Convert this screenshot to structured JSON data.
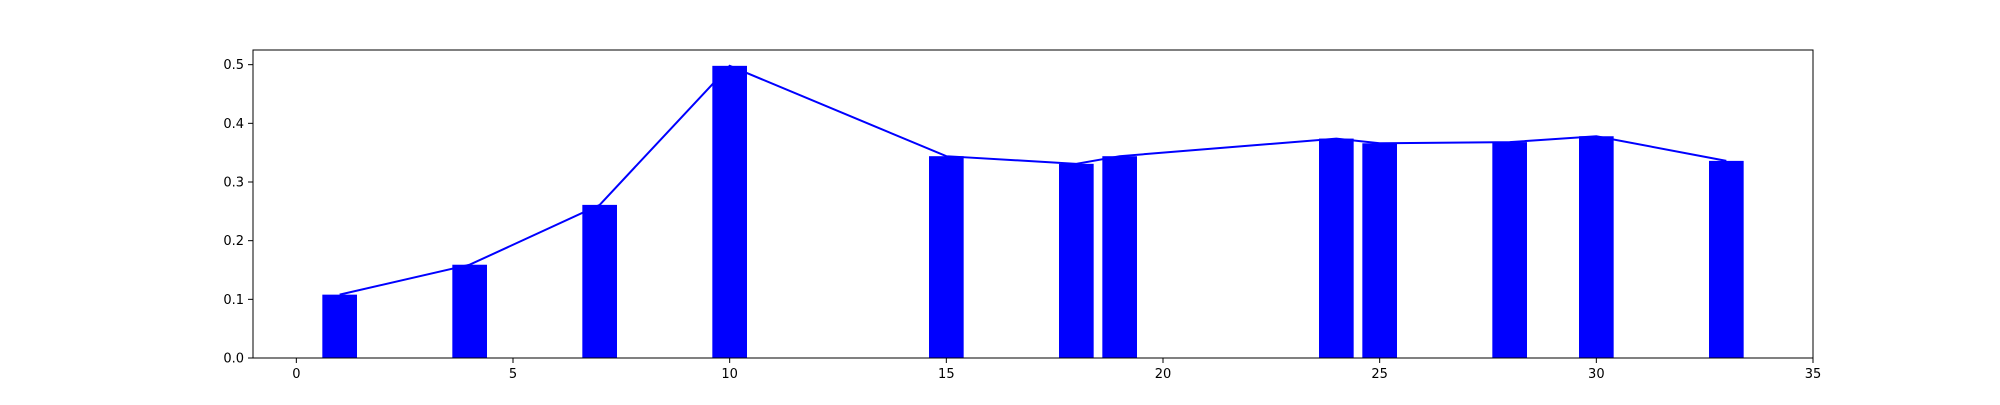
{
  "chart_data": {
    "type": "bar",
    "title": "",
    "xlabel": "",
    "ylabel": "",
    "xlim": [
      -1,
      35
    ],
    "ylim": [
      0,
      0.525
    ],
    "grid": false,
    "bar_color": "#0000ff",
    "line_color": "#0000ff",
    "x_ticks": [
      0,
      5,
      10,
      15,
      20,
      25,
      30,
      35
    ],
    "x_tick_labels": [
      "0",
      "5",
      "10",
      "15",
      "20",
      "25",
      "30",
      "35"
    ],
    "y_ticks": [
      0.0,
      0.1,
      0.2,
      0.3,
      0.4,
      0.5
    ],
    "y_tick_labels": [
      "0.0",
      "0.1",
      "0.2",
      "0.3",
      "0.4",
      "0.5"
    ],
    "series": [
      {
        "x": [
          1,
          4,
          7,
          10,
          15,
          18,
          19,
          24,
          25,
          28,
          30,
          33
        ],
        "values": [
          0.108,
          0.159,
          0.261,
          0.498,
          0.344,
          0.331,
          0.344,
          0.374,
          0.366,
          0.368,
          0.378,
          0.336
        ]
      }
    ]
  }
}
